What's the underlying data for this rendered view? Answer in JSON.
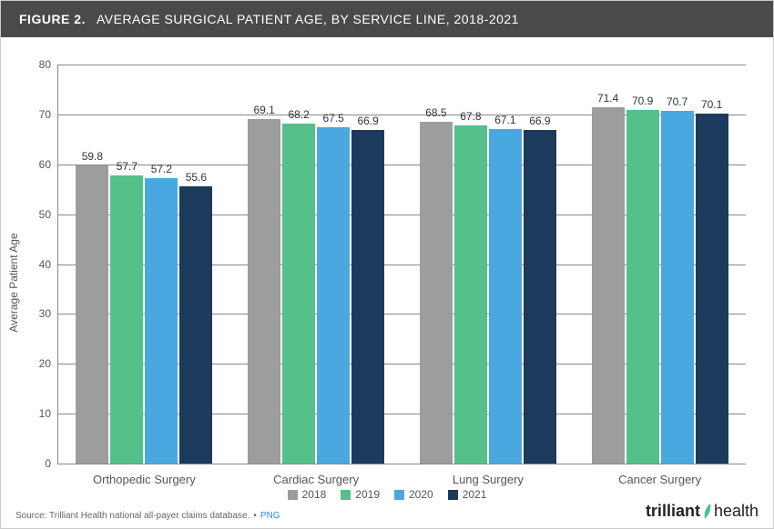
{
  "header": {
    "figure_label": "FIGURE 2.",
    "title": "AVERAGE SURGICAL PATIENT AGE, BY SERVICE LINE, 2018-2021"
  },
  "chart": {
    "type": "bar",
    "ylabel": "Average Patient Age",
    "ylim": [
      0,
      80
    ],
    "ytick_step": 10,
    "yticks": [
      0,
      10,
      20,
      30,
      40,
      50,
      60,
      70,
      80
    ],
    "categories": [
      "Orthopedic Surgery",
      "Cardiac Surgery",
      "Lung Surgery",
      "Cancer Surgery"
    ],
    "series": [
      {
        "name": "2018",
        "color": "#9d9d9d",
        "values": [
          59.8,
          69.1,
          68.5,
          71.4
        ]
      },
      {
        "name": "2019",
        "color": "#54c08a",
        "values": [
          57.7,
          68.2,
          67.8,
          70.9
        ]
      },
      {
        "name": "2020",
        "color": "#4aa8e0",
        "values": [
          57.2,
          67.5,
          67.1,
          70.7
        ]
      },
      {
        "name": "2021",
        "color": "#1b3a5c",
        "values": [
          55.6,
          66.9,
          66.9,
          70.1
        ]
      }
    ],
    "grid_color": "#888888",
    "background_color": "#ffffff",
    "label_fontsize": 12,
    "axis_fontsize": 12
  },
  "footer": {
    "source": "Source: Trilliant Health national all-payer claims database.",
    "separator": "•",
    "download": "PNG",
    "brand_a": "trilliant",
    "brand_b": "health",
    "brand_accent": "#54c08a"
  }
}
